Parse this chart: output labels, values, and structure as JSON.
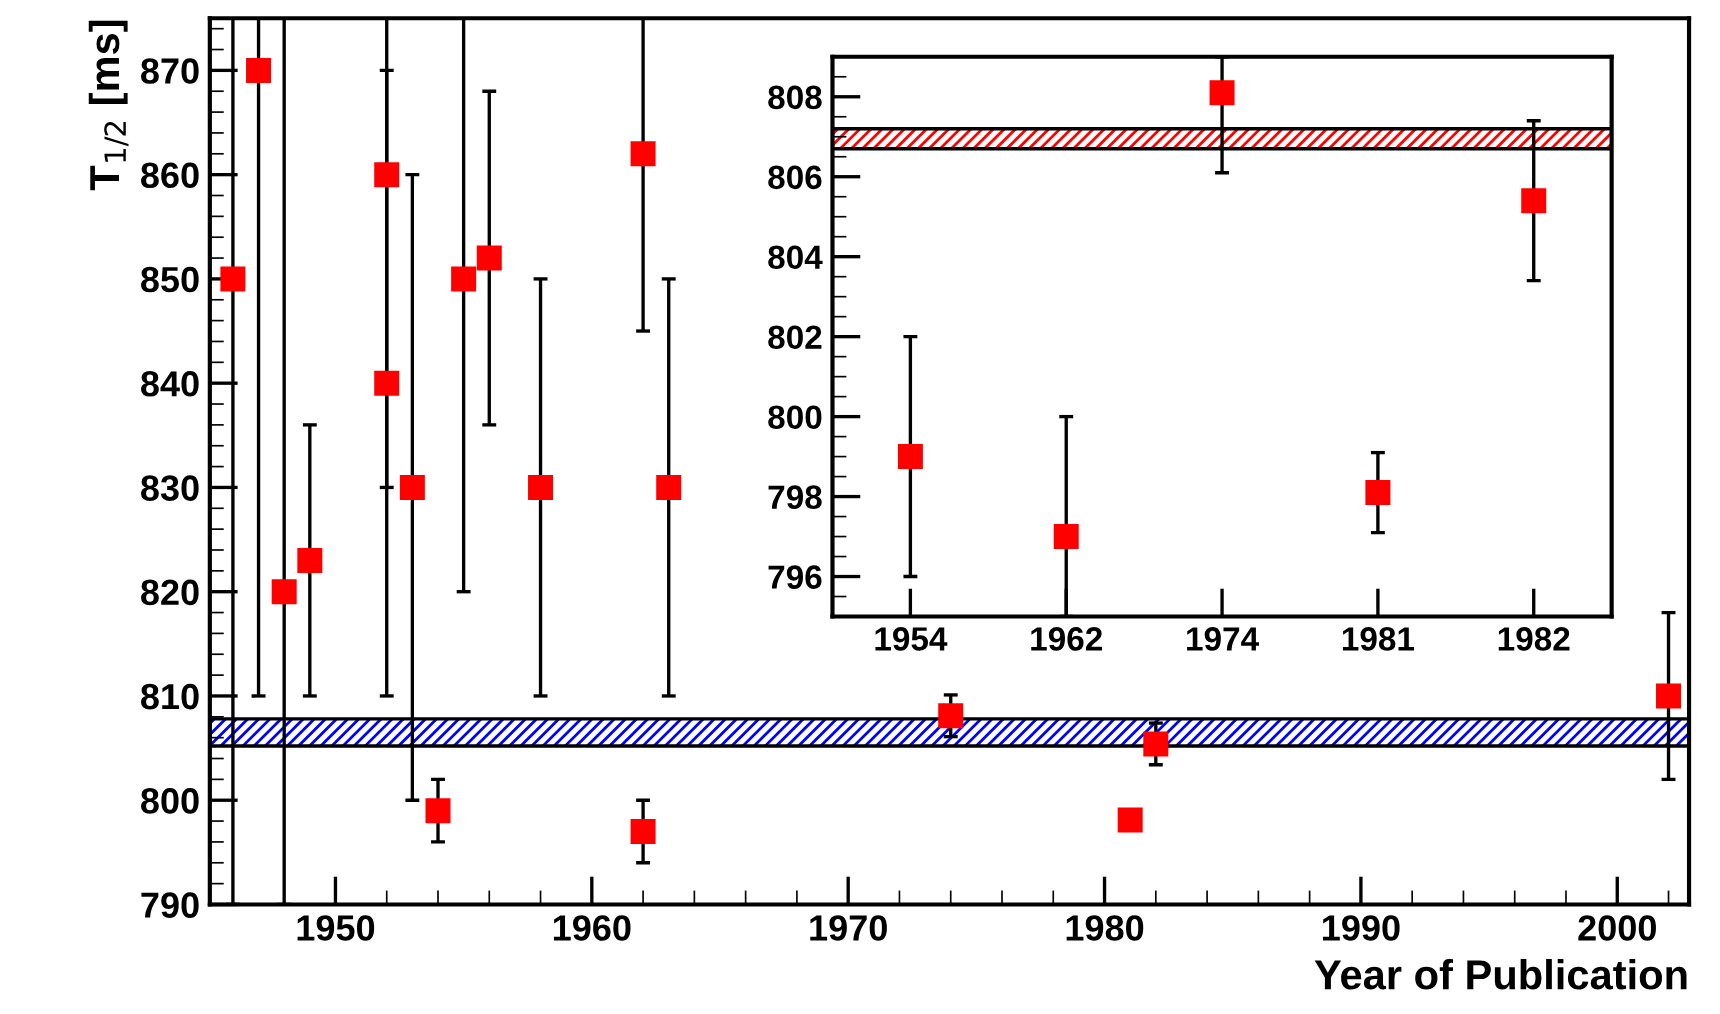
{
  "chart_data": [
    {
      "type": "scatter",
      "xlabel": "Year of Publication",
      "ylabel": "T$_{1/2}$ [ms]",
      "marker": "square",
      "grid": false,
      "legend": false,
      "xlim": [
        1945.1,
        2002.8
      ],
      "xticks": [
        1950,
        1960,
        1970,
        1980,
        1990,
        2000
      ],
      "ylim": [
        790,
        875
      ],
      "yticks": [
        790,
        800,
        810,
        820,
        830,
        840,
        850,
        860,
        870
      ],
      "bands": [
        {
          "axis": "y",
          "from": 805.2,
          "to": 807.8,
          "color": "#0000ff"
        }
      ],
      "series": [
        {
          "color": "#ff0000",
          "x": [
            1946,
            1947,
            1948,
            1949,
            1952,
            1952,
            1953,
            1954,
            1955,
            1956,
            1958,
            1962,
            1962,
            1963,
            1974,
            1981,
            1982,
            2002
          ],
          "values": [
            850,
            870,
            820,
            823,
            860,
            840,
            830,
            799,
            850,
            852,
            830,
            862,
            797,
            830,
            808.1,
            798.1,
            805.4,
            810
          ],
          "errors": [
            [
              790,
              875
            ],
            [
              810,
              875
            ],
            [
              790,
              875
            ],
            13,
            [
              830,
              875
            ],
            30,
            30,
            3,
            [
              820,
              875
            ],
            16,
            20,
            [
              845,
              875
            ],
            3,
            20,
            2,
            null,
            2,
            8
          ]
        }
      ]
    },
    {
      "type": "scatter",
      "marker": "square",
      "grid": false,
      "legend": false,
      "categories": [
        "1954",
        "1962",
        "1974",
        "1981",
        "1982"
      ],
      "ylim": [
        795,
        809
      ],
      "yticks": [
        796,
        798,
        800,
        802,
        804,
        806,
        808
      ],
      "bands": [
        {
          "axis": "y",
          "from": 806.7,
          "to": 807.2,
          "color": "#ff0000"
        }
      ],
      "series": [
        {
          "color": "#ff0000",
          "values": [
            799,
            797,
            808.1,
            798.1,
            805.4
          ],
          "errors": [
            3,
            [
              795,
              800
            ],
            [
              806.1,
              809
            ],
            1,
            2
          ]
        }
      ]
    }
  ]
}
